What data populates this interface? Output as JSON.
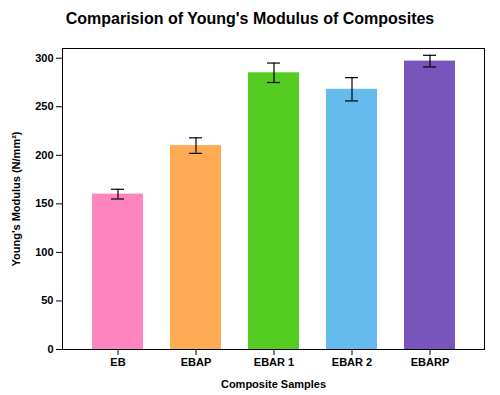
{
  "chart_data": {
    "type": "bar",
    "title": "Comparision of Young's Modulus of Composites",
    "xlabel": "Composite Samples",
    "ylabel": "Young's Modulus (N/mm²)",
    "categories": [
      "EB",
      "EBAP",
      "EBAR 1",
      "EBAR 2",
      "EBARP"
    ],
    "values": [
      160,
      210,
      285,
      268,
      297
    ],
    "errors": [
      5,
      8,
      10,
      12,
      6
    ],
    "colors": [
      "#FF85C0",
      "#FFAA55",
      "#55CC22",
      "#66BBEE",
      "#7755BB"
    ],
    "ylim": [
      0,
      310
    ],
    "yticks": [
      0,
      50,
      100,
      150,
      200,
      250,
      300
    ],
    "grid": false
  }
}
